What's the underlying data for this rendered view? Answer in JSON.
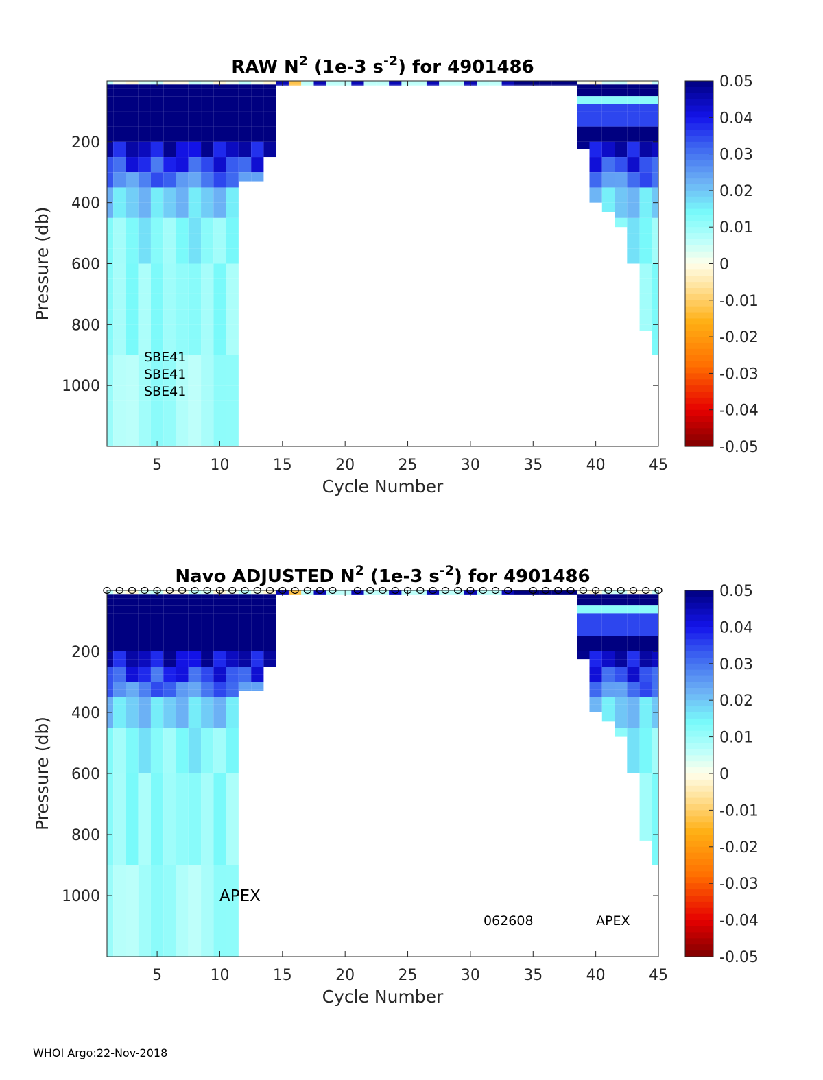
{
  "footer": "WHOI Argo:22-Nov-2018",
  "chart_data": [
    {
      "type": "heatmap",
      "title_parts": [
        "RAW N",
        "2",
        " (1e-3 s",
        "-2",
        ") for 4901486"
      ],
      "xlabel": "Cycle Number",
      "ylabel": "Pressure (db)",
      "xlim": [
        1,
        45
      ],
      "ylim": [
        0,
        1200
      ],
      "xticks": [
        "5",
        "10",
        "15",
        "20",
        "25",
        "30",
        "35",
        "40",
        "45"
      ],
      "yticks": [
        "200",
        "400",
        "600",
        "800",
        "1000"
      ],
      "clim": [
        -0.05,
        0.05
      ],
      "colorbar_ticks": [
        "0.05",
        "0.04",
        "0.03",
        "0.02",
        "0.01",
        "0",
        "-0.01",
        "-0.02",
        "-0.03",
        "-0.04",
        "-0.05"
      ],
      "annotations": [
        "SBE41",
        "SBE41",
        "SBE41"
      ],
      "surface_markers": 0
    },
    {
      "type": "heatmap",
      "title_parts": [
        "Navo  ADJUSTED N",
        "2",
        " (1e-3 s",
        "-2",
        ") for 4901486"
      ],
      "xlabel": "Cycle Number",
      "ylabel": "Pressure (db)",
      "xlim": [
        1,
        45
      ],
      "ylim": [
        0,
        1200
      ],
      "xticks": [
        "5",
        "10",
        "15",
        "20",
        "25",
        "30",
        "35",
        "40",
        "45"
      ],
      "yticks": [
        "200",
        "400",
        "600",
        "800",
        "1000"
      ],
      "clim": [
        -0.05,
        0.05
      ],
      "colorbar_ticks": [
        "0.05",
        "0.04",
        "0.03",
        "0.02",
        "0.01",
        "0",
        "-0.01",
        "-0.02",
        "-0.03",
        "-0.04",
        "-0.05"
      ],
      "annotations": [
        "APEX",
        "062608",
        "APEX"
      ],
      "surface_markers": 1
    }
  ],
  "profiles": {
    "cycles": [
      1,
      2,
      3,
      4,
      5,
      6,
      7,
      8,
      9,
      10,
      11,
      12,
      13,
      14,
      15,
      16,
      17,
      18,
      19,
      20,
      21,
      22,
      23,
      24,
      25,
      26,
      27,
      28,
      29,
      30,
      31,
      32,
      33,
      34,
      35,
      36,
      37,
      38,
      39,
      40,
      41,
      42,
      43,
      44,
      45
    ],
    "max_pressure": [
      1200,
      1200,
      1200,
      1200,
      1200,
      1200,
      1200,
      1200,
      1200,
      1200,
      1200,
      330,
      330,
      250,
      15,
      15,
      15,
      15,
      15,
      15,
      15,
      15,
      15,
      15,
      15,
      15,
      15,
      15,
      15,
      15,
      15,
      15,
      15,
      15,
      15,
      15,
      15,
      15,
      225,
      400,
      430,
      480,
      600,
      820,
      900
    ],
    "marker_cycles": [
      1,
      2,
      3,
      4,
      5,
      6,
      7,
      8,
      9,
      10,
      11,
      12,
      13,
      14,
      15,
      16,
      17,
      18,
      19,
      21,
      22,
      23,
      24,
      25,
      26,
      27,
      28,
      29,
      30,
      31,
      32,
      33,
      35,
      36,
      37,
      38,
      39,
      40,
      41,
      42,
      43,
      44,
      45
    ]
  }
}
